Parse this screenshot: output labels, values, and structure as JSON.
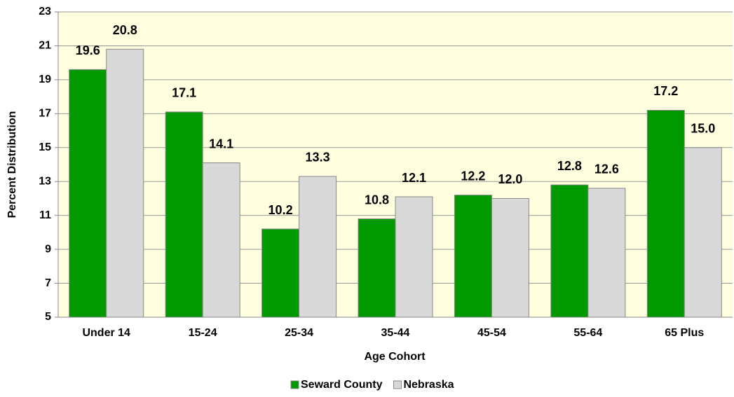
{
  "chart_data": {
    "type": "bar",
    "x_label": "Age Cohort",
    "y_label": "Percent Distribution",
    "categories": [
      "Under 14",
      "15-24",
      "25-34",
      "35-44",
      "45-54",
      "55-64",
      "65 Plus"
    ],
    "series": [
      {
        "name": "Seward County",
        "color": "#009900",
        "values": [
          19.6,
          17.1,
          10.2,
          10.8,
          12.2,
          12.8,
          17.2
        ],
        "value_labels": [
          "19.6",
          "17.1",
          "10.2",
          "10.8",
          "12.2",
          "12.8",
          "17.2"
        ]
      },
      {
        "name": "Nebraska",
        "color": "#d9d9d9",
        "values": [
          20.8,
          14.1,
          13.3,
          12.1,
          12.0,
          12.6,
          15.0
        ],
        "value_labels": [
          "20.8",
          "14.1",
          "13.3",
          "12.1",
          "12.0",
          "12.6",
          "15.0"
        ]
      }
    ],
    "ylim": [
      5,
      23
    ],
    "yticks": [
      5,
      7,
      9,
      11,
      13,
      15,
      17,
      19,
      21,
      23
    ],
    "grid": true,
    "legend": "bottom"
  }
}
